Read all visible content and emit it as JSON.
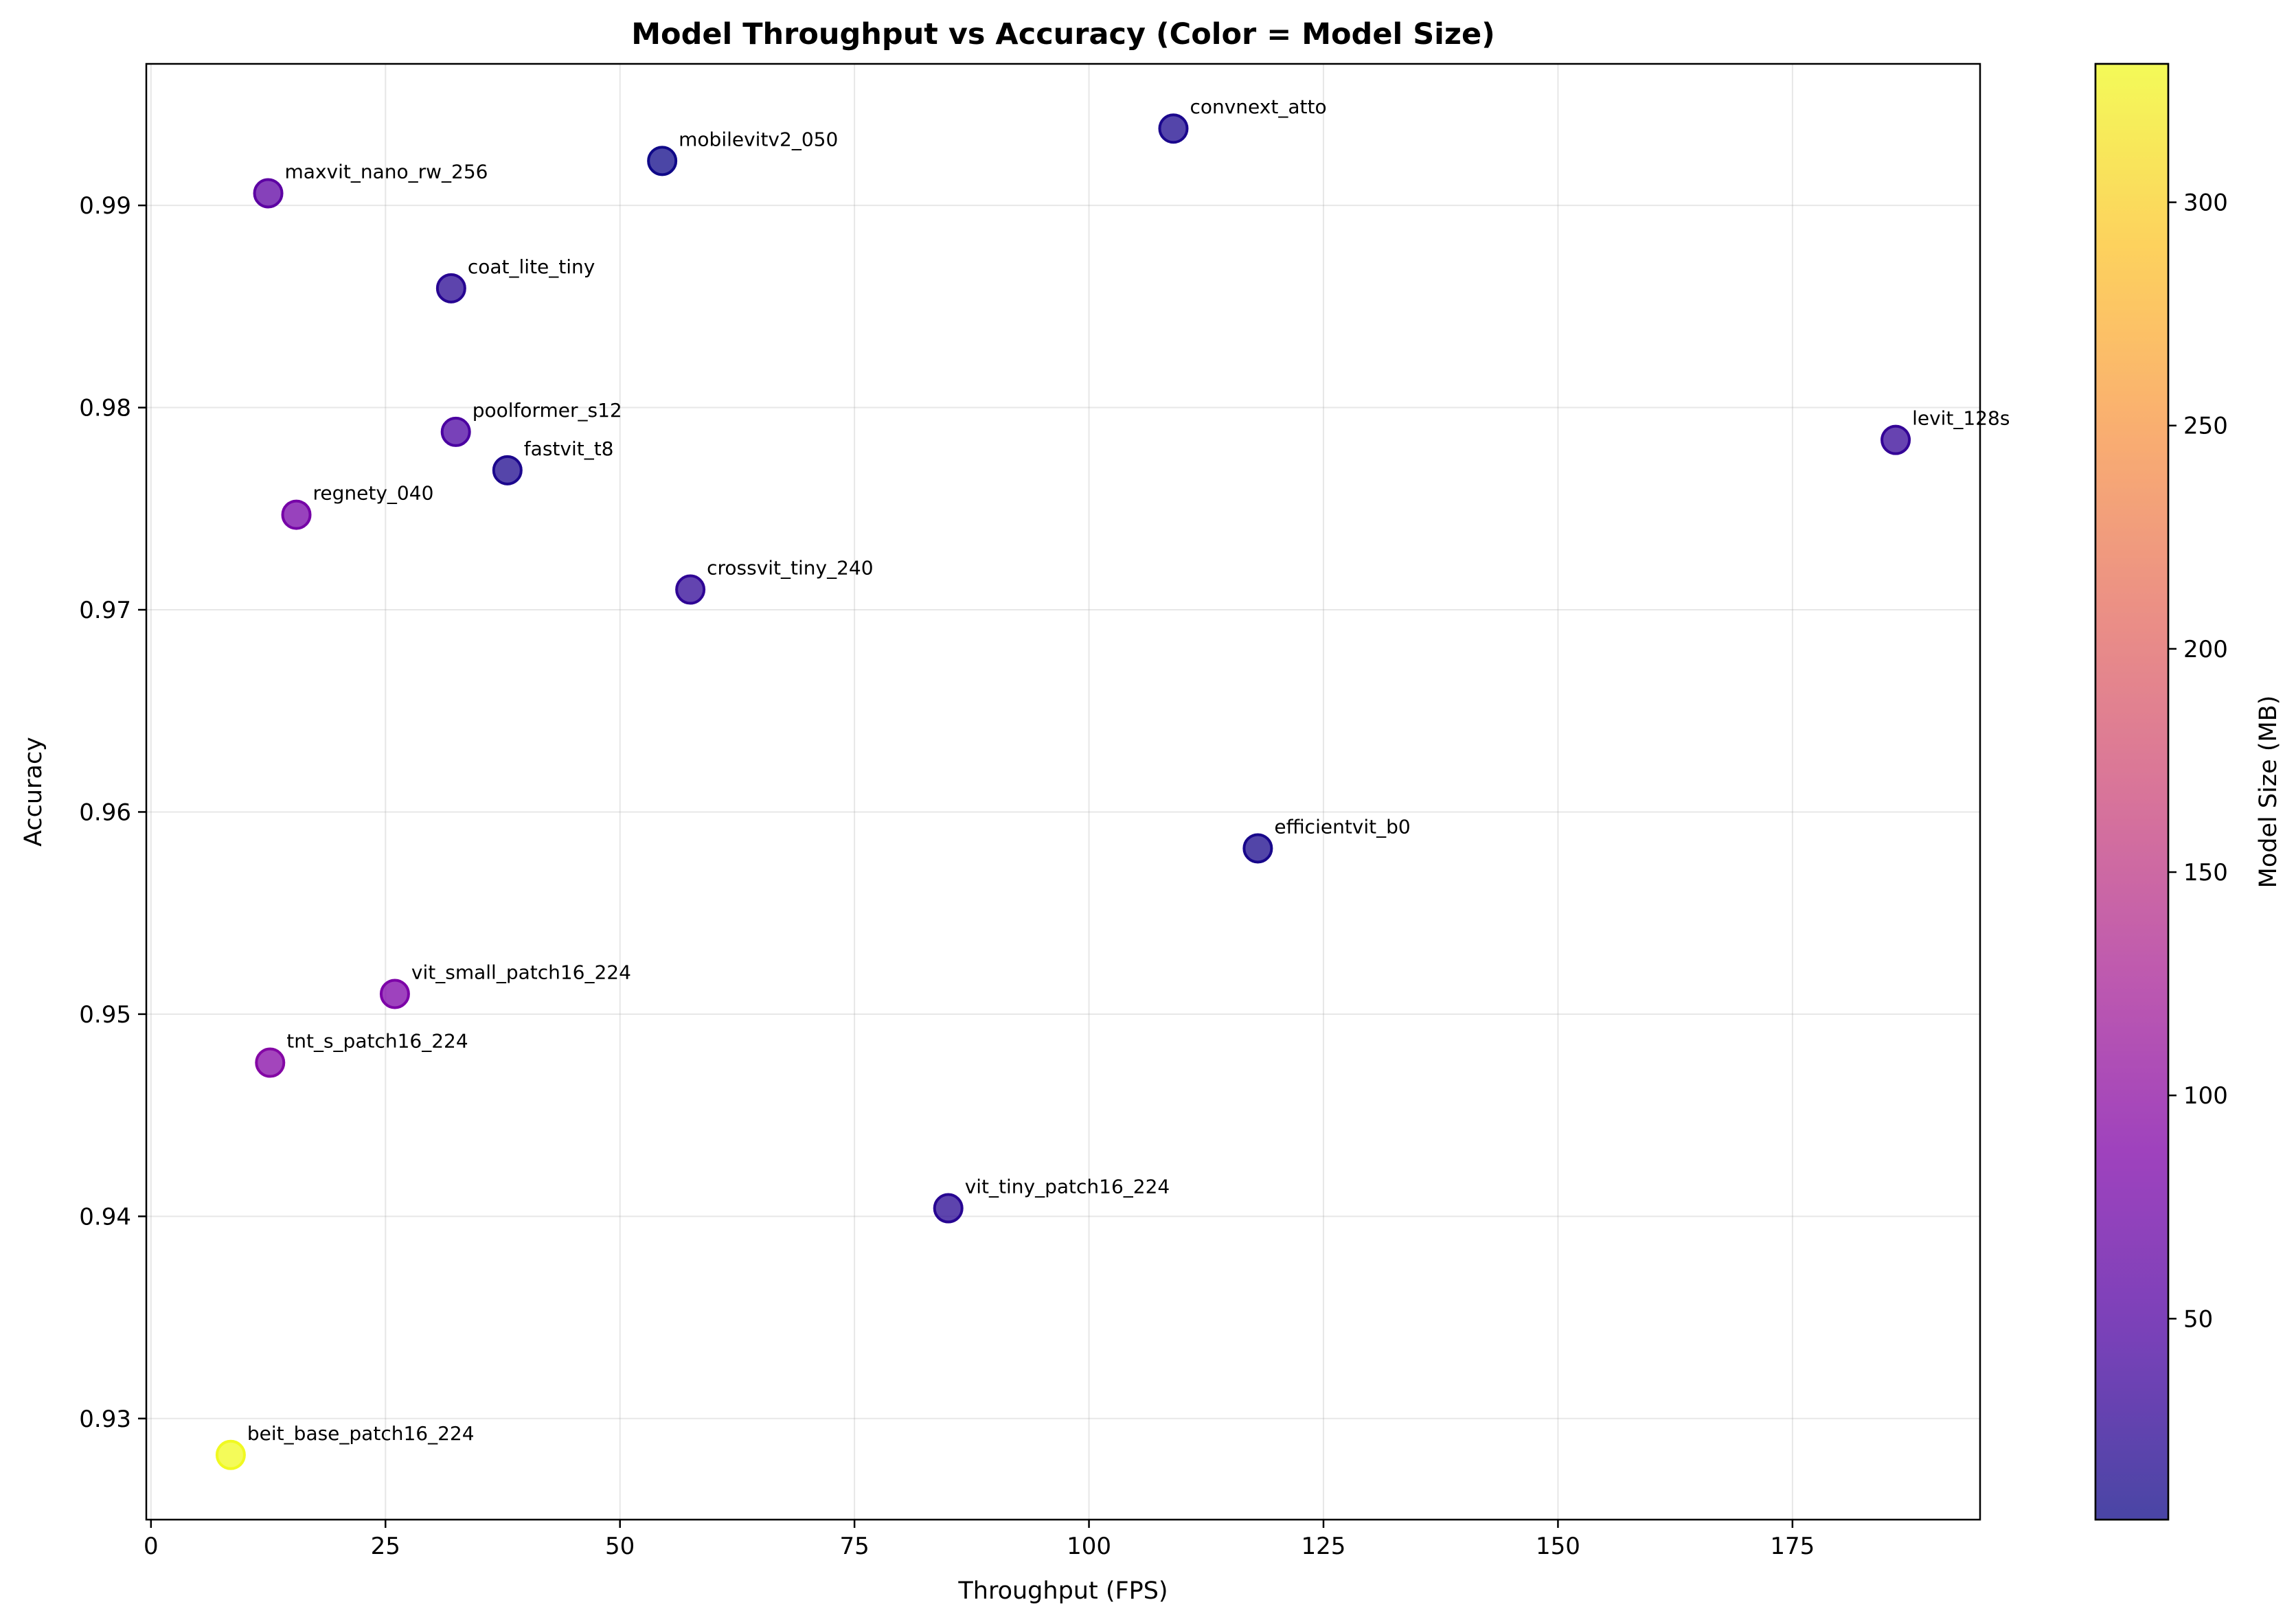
{
  "chart_data": {
    "type": "scatter",
    "title": "Model Throughput vs Accuracy (Color = Model Size)",
    "xlabel": "Throughput (FPS)",
    "ylabel": "Accuracy",
    "xlim": [
      -0.5,
      195
    ],
    "ylim": [
      0.925,
      0.997
    ],
    "xticks": [
      0,
      25,
      50,
      75,
      100,
      125,
      150,
      175
    ],
    "yticks": [
      0.93,
      0.94,
      0.95,
      0.96,
      0.97,
      0.98,
      0.99
    ],
    "grid": true,
    "colorbar": {
      "label": "Model Size (MB)",
      "range": [
        5,
        331
      ],
      "ticks": [
        50,
        100,
        150,
        200,
        250,
        300
      ],
      "colormap": "plasma"
    },
    "points": [
      {
        "label": "convnext_atto",
        "x": 109,
        "y": 0.9938,
        "size_mb": 14
      },
      {
        "label": "mobilevitv2_050",
        "x": 54.5,
        "y": 0.9922,
        "size_mb": 6
      },
      {
        "label": "maxvit_nano_rw_256",
        "x": 12.5,
        "y": 0.9906,
        "size_mb": 60
      },
      {
        "label": "coat_lite_tiny",
        "x": 32,
        "y": 0.9859,
        "size_mb": 22
      },
      {
        "label": "poolformer_s12",
        "x": 32.5,
        "y": 0.9788,
        "size_mb": 45
      },
      {
        "label": "fastvit_t8",
        "x": 38,
        "y": 0.9769,
        "size_mb": 15
      },
      {
        "label": "levit_128s",
        "x": 186,
        "y": 0.9784,
        "size_mb": 30
      },
      {
        "label": "regnety_040",
        "x": 15.5,
        "y": 0.9747,
        "size_mb": 80
      },
      {
        "label": "crossvit_tiny_240",
        "x": 57.5,
        "y": 0.971,
        "size_mb": 27
      },
      {
        "label": "efficientvit_b0",
        "x": 118,
        "y": 0.9582,
        "size_mb": 12
      },
      {
        "label": "vit_small_patch16_224",
        "x": 26,
        "y": 0.951,
        "size_mb": 86
      },
      {
        "label": "tnt_s_patch16_224",
        "x": 12.7,
        "y": 0.9476,
        "size_mb": 92
      },
      {
        "label": "vit_tiny_patch16_224",
        "x": 85,
        "y": 0.9404,
        "size_mb": 22
      },
      {
        "label": "beit_base_patch16_224",
        "x": 8.5,
        "y": 0.9282,
        "size_mb": 331
      }
    ]
  }
}
